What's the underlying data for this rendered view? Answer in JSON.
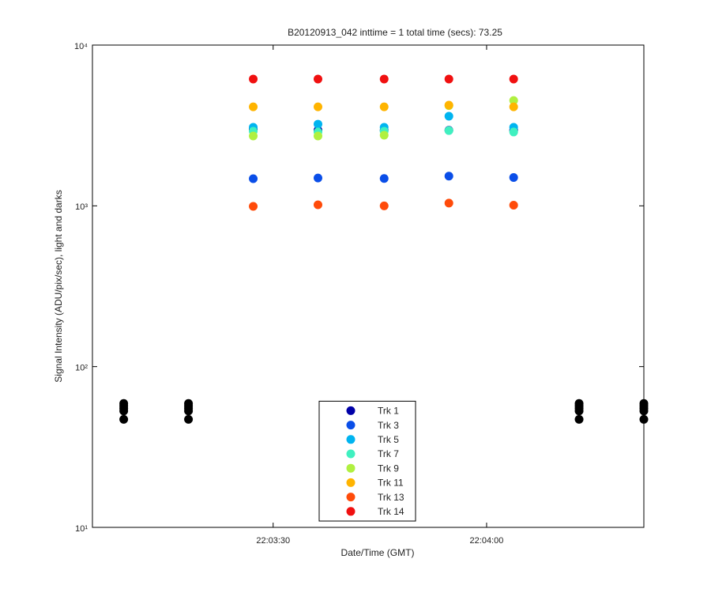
{
  "chart_data": {
    "type": "scatter",
    "title": "B20120913_042 inttime = 1 total time (secs): 73.25",
    "xlabel": "Date/Time (GMT)",
    "ylabel": "Signal Intensity (ADU/pix/sec), light and darks",
    "xlim": [
      79384.6,
      79462.1
    ],
    "xticks": [
      {
        "value": 79410,
        "label": "22:03:30"
      },
      {
        "value": 79440,
        "label": "22:04:00"
      }
    ],
    "ylim": [
      10,
      10000
    ],
    "ylog": true,
    "yticks": [
      {
        "value": 10,
        "label": "10¹"
      },
      {
        "value": 100,
        "label": "10²"
      },
      {
        "value": 1000,
        "label": "10³"
      },
      {
        "value": 10000,
        "label": "10⁴"
      }
    ],
    "legend": "lower center",
    "series": [
      {
        "name": "Trk 1",
        "color": "#0000a8",
        "x": [
          79407.2,
          79416.3,
          79425.6,
          79434.7,
          79443.8
        ],
        "values": [
          3000,
          2950,
          2950,
          2950,
          2950
        ]
      },
      {
        "name": "Trk 3",
        "color": "#0a4ee8",
        "x": [
          79407.2,
          79416.3,
          79425.6,
          79434.7,
          79443.8
        ],
        "values": [
          1475,
          1490,
          1480,
          1530,
          1500
        ]
      },
      {
        "name": "Trk 5",
        "color": "#00b4f0",
        "x": [
          79407.2,
          79416.3,
          79425.6,
          79434.7,
          79443.8
        ],
        "values": [
          3080,
          3220,
          3080,
          3610,
          3080
        ]
      },
      {
        "name": "Trk 7",
        "color": "#40f0c0",
        "x": [
          79407.2,
          79416.3,
          79425.6,
          79434.7,
          79443.8
        ],
        "values": [
          2910,
          2880,
          2910,
          2940,
          2880
        ]
      },
      {
        "name": "Trk 9",
        "color": "#b0f040",
        "x": [
          79407.2,
          79416.3,
          79425.6,
          79434.7,
          79443.8
        ],
        "values": [
          2720,
          2720,
          2750,
          4200,
          4520
        ]
      },
      {
        "name": "Trk 11",
        "color": "#ffb400",
        "x": [
          79407.2,
          79416.3,
          79425.6,
          79434.7,
          79443.8
        ],
        "values": [
          4130,
          4130,
          4130,
          4230,
          4130
        ]
      },
      {
        "name": "Trk 13",
        "color": "#ff4b0a",
        "x": [
          79407.2,
          79416.3,
          79425.6,
          79434.7,
          79443.8
        ],
        "values": [
          992,
          1015,
          1000,
          1040,
          1010
        ]
      },
      {
        "name": "Trk 14",
        "color": "#f01010",
        "x": [
          79407.2,
          79416.3,
          79425.6,
          79434.7,
          79443.8
        ],
        "values": [
          6145,
          6145,
          6145,
          6145,
          6145
        ]
      },
      {
        "color": "#000000",
        "x": [
          79389.0,
          79389.0,
          79389.0,
          79389.0,
          79389.0,
          79398.1,
          79398.1,
          79398.1,
          79398.1,
          79398.1,
          79453.0,
          79453.0,
          79453.0,
          79453.0,
          79453.0,
          79462.1,
          79462.1,
          79462.1,
          79462.1,
          79462.1
        ],
        "values": [
          59,
          57,
          55,
          53,
          47,
          59,
          57,
          55,
          53,
          47,
          59,
          57,
          55,
          53,
          47,
          59,
          57,
          55,
          53,
          47
        ]
      }
    ]
  }
}
